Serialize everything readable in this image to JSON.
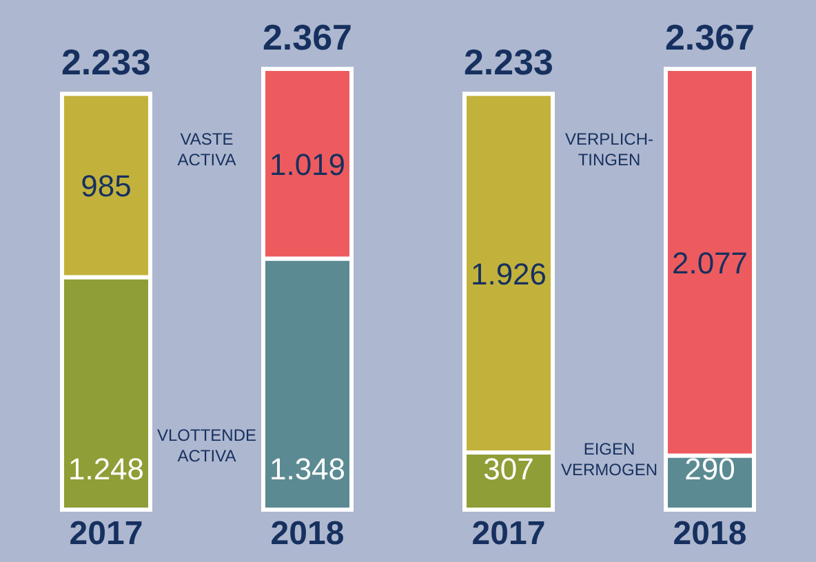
{
  "chart_data": {
    "type": "bar",
    "stacked": true,
    "categories": [
      "2017",
      "2018",
      "2017",
      "2018"
    ],
    "series": [
      {
        "colors": [
          "#8f9e36",
          "#5b8a92",
          "#8f9e36",
          "#5b8a92"
        ],
        "values": [
          1248,
          1348,
          307,
          290
        ],
        "value_labels": [
          "1.248",
          "1.348",
          "307",
          "290"
        ]
      },
      {
        "colors": [
          "#c2b23c",
          "#ee5b5e",
          "#c2b23c",
          "#ee5b5e"
        ],
        "values": [
          985,
          1019,
          1926,
          2077
        ],
        "value_labels": [
          "985",
          "1.019",
          "1.926",
          "2.077"
        ]
      }
    ],
    "totals": [
      "2.233",
      "2.367",
      "2.233",
      "2.367"
    ],
    "annotations": [
      "VASTE ACTIVA",
      "VLOTTENDE ACTIVA",
      "VERPLICH-TINGEN",
      "EIGEN VERMOGEN"
    ]
  }
}
